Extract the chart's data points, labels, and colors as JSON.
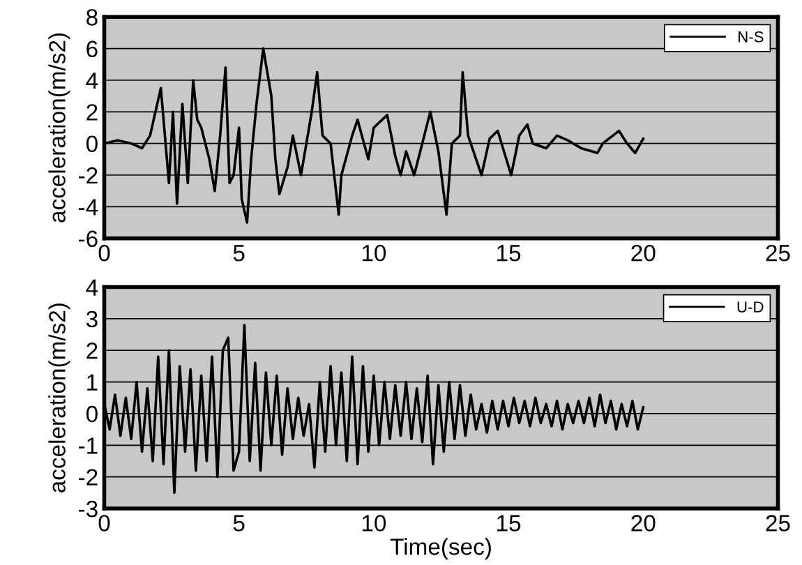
{
  "chart_data": [
    {
      "type": "line",
      "ylabel": "acceleration(m/s2)",
      "xlim": [
        0,
        25
      ],
      "xticks": [
        0,
        5,
        10,
        15,
        20,
        25
      ],
      "ylim": [
        -6,
        8
      ],
      "yticks": [
        -6,
        -4,
        -2,
        0,
        2,
        4,
        6,
        8
      ],
      "grid": "y",
      "legend": "top right",
      "series": [
        {
          "name": "N-S",
          "color": "#000000",
          "x": [
            0,
            0.5,
            1.0,
            1.4,
            1.7,
            2.1,
            2.4,
            2.55,
            2.7,
            2.9,
            3.1,
            3.3,
            3.45,
            3.6,
            3.9,
            4.1,
            4.3,
            4.5,
            4.65,
            4.8,
            5.0,
            5.1,
            5.3,
            5.45,
            5.65,
            5.9,
            6.2,
            6.35,
            6.5,
            6.8,
            7.0,
            7.3,
            7.5,
            7.7,
            7.9,
            8.1,
            8.4,
            8.7,
            8.8,
            9.2,
            9.4,
            9.8,
            10.0,
            10.5,
            10.8,
            11.0,
            11.2,
            11.5,
            11.8,
            12.1,
            12.4,
            12.7,
            12.9,
            13.2,
            13.3,
            13.5,
            13.8,
            14.0,
            14.3,
            14.6,
            15.1,
            15.4,
            15.7,
            15.9,
            16.4,
            16.8,
            17.2,
            17.7,
            18.3,
            18.5,
            19.1,
            19.4,
            19.7,
            20.0
          ],
          "values": [
            0,
            0.2,
            0,
            -0.3,
            0.5,
            3.5,
            -2.5,
            2,
            -3.8,
            2.5,
            -2.5,
            4,
            1.5,
            1,
            -1,
            -3,
            0.5,
            4.8,
            -2.5,
            -2,
            1,
            -3.5,
            -5,
            -1,
            2.5,
            6,
            3,
            -1,
            -3.2,
            -1.5,
            0.5,
            -2,
            0,
            2,
            4.5,
            0.5,
            0,
            -4.5,
            -2,
            0.5,
            1.5,
            -1,
            1,
            1.8,
            -0.8,
            -2,
            -0.5,
            -2,
            0,
            2,
            -0.5,
            -4.5,
            0,
            0.5,
            4.5,
            0.5,
            -1,
            -2,
            0.3,
            0.8,
            -2,
            0.5,
            1.2,
            0,
            -0.3,
            0.5,
            0.2,
            -0.3,
            -0.6,
            0,
            0.8,
            0,
            -0.6,
            0.3
          ]
        }
      ]
    },
    {
      "type": "line",
      "xlabel": "Time(sec)",
      "ylabel": "acceleration(m/s2)",
      "xlim": [
        0,
        25
      ],
      "xticks": [
        0,
        5,
        10,
        15,
        20,
        25
      ],
      "ylim": [
        -3,
        4
      ],
      "yticks": [
        -3,
        -2,
        -1,
        0,
        1,
        2,
        3,
        4
      ],
      "grid": "y",
      "legend": "top right",
      "series": [
        {
          "name": "U-D",
          "color": "#000000",
          "x": [
            0,
            0.2,
            0.4,
            0.6,
            0.8,
            1.0,
            1.2,
            1.4,
            1.6,
            1.8,
            2.0,
            2.2,
            2.4,
            2.6,
            2.8,
            3.0,
            3.2,
            3.4,
            3.6,
            3.8,
            4.0,
            4.2,
            4.4,
            4.6,
            4.8,
            5.0,
            5.2,
            5.4,
            5.6,
            5.8,
            6.0,
            6.2,
            6.4,
            6.6,
            6.8,
            7.0,
            7.2,
            7.4,
            7.6,
            7.8,
            8.0,
            8.2,
            8.4,
            8.6,
            8.8,
            9.0,
            9.2,
            9.4,
            9.6,
            9.8,
            10.0,
            10.2,
            10.4,
            10.6,
            10.8,
            11.0,
            11.2,
            11.4,
            11.6,
            11.8,
            12.0,
            12.2,
            12.4,
            12.6,
            12.8,
            13.0,
            13.2,
            13.4,
            13.6,
            13.8,
            14.0,
            14.2,
            14.4,
            14.6,
            14.8,
            15.0,
            15.2,
            15.4,
            15.6,
            15.8,
            16.0,
            16.2,
            16.4,
            16.6,
            16.8,
            17.0,
            17.2,
            17.4,
            17.6,
            17.8,
            18.0,
            18.2,
            18.4,
            18.6,
            18.8,
            19.0,
            19.2,
            19.4,
            19.6,
            19.8,
            20.0
          ],
          "values": [
            0.3,
            -0.5,
            0.6,
            -0.7,
            0.5,
            -0.8,
            1.0,
            -1.2,
            0.8,
            -1.5,
            1.8,
            -1.6,
            2.0,
            -2.5,
            1.5,
            -1.2,
            1.4,
            -1.8,
            1.2,
            -1.5,
            1.8,
            -2.0,
            2.0,
            2.4,
            -1.8,
            -1.2,
            2.8,
            -1.5,
            1.6,
            -1.8,
            1.3,
            -1.0,
            1.2,
            -1.3,
            0.8,
            -0.8,
            0.5,
            -0.7,
            0.3,
            -1.7,
            1.0,
            -1.2,
            1.5,
            -1.0,
            1.3,
            -1.5,
            1.8,
            -1.6,
            1.5,
            -1.2,
            1.2,
            -1.0,
            1.0,
            -0.8,
            0.9,
            -0.7,
            1.0,
            -0.8,
            0.8,
            -0.9,
            1.2,
            -1.6,
            0.9,
            -1.2,
            1.0,
            -0.8,
            0.9,
            -0.7,
            0.6,
            -0.5,
            0.3,
            -0.6,
            0.4,
            -0.5,
            0.4,
            -0.4,
            0.5,
            -0.3,
            0.4,
            -0.4,
            0.5,
            -0.3,
            0.3,
            -0.4,
            0.4,
            -0.5,
            0.3,
            -0.3,
            0.4,
            -0.3,
            0.5,
            -0.4,
            0.6,
            -0.3,
            0.4,
            -0.5,
            0.3,
            -0.4,
            0.4,
            -0.5,
            0.2
          ]
        }
      ]
    }
  ]
}
